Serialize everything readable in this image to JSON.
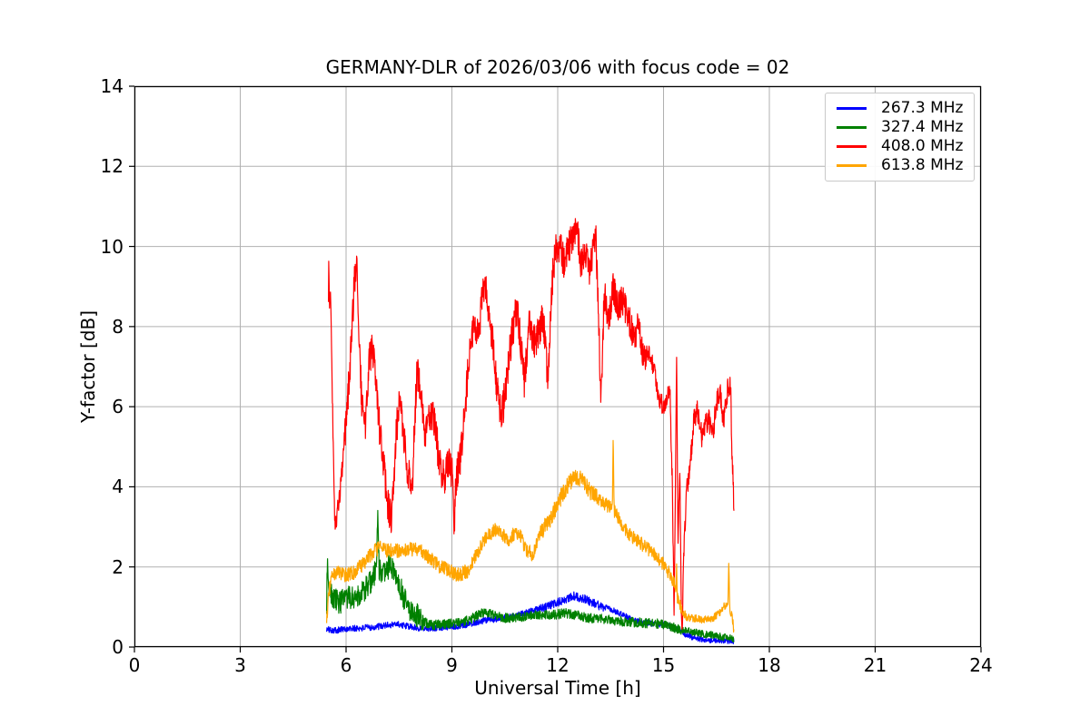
{
  "chart_data": {
    "type": "line",
    "title": "GERMANY-DLR of 2026/03/06 with focus code = 02",
    "xlabel": "Universal Time [h]",
    "ylabel": "Y-factor [dB]",
    "xlim": [
      0,
      24
    ],
    "ylim": [
      0,
      14
    ],
    "xticks": [
      0,
      3,
      6,
      9,
      12,
      15,
      18,
      21,
      24
    ],
    "yticks": [
      0,
      2,
      4,
      6,
      8,
      10,
      12,
      14
    ],
    "grid": true,
    "grid_color": "#b0b0b0",
    "background": "#ffffff",
    "legend_position": "upper-right",
    "series": [
      {
        "name": "267.3 MHz",
        "color": "#0000ff",
        "seed": 101,
        "noise": [
          [
            5.45,
            11.5,
            0.08
          ],
          [
            11.5,
            13.3,
            0.11
          ],
          [
            13.3,
            17.01,
            0.07
          ]
        ],
        "anchors": [
          [
            5.45,
            0.44
          ],
          [
            5.7,
            0.42
          ],
          [
            6.0,
            0.45
          ],
          [
            6.4,
            0.47
          ],
          [
            6.8,
            0.5
          ],
          [
            7.2,
            0.55
          ],
          [
            7.45,
            0.58
          ],
          [
            7.7,
            0.52
          ],
          [
            8.0,
            0.48
          ],
          [
            8.4,
            0.47
          ],
          [
            8.8,
            0.5
          ],
          [
            9.1,
            0.52
          ],
          [
            9.4,
            0.56
          ],
          [
            9.7,
            0.62
          ],
          [
            10.0,
            0.68
          ],
          [
            10.4,
            0.71
          ],
          [
            10.8,
            0.78
          ],
          [
            11.2,
            0.88
          ],
          [
            11.6,
            0.98
          ],
          [
            11.9,
            1.08
          ],
          [
            12.2,
            1.18
          ],
          [
            12.45,
            1.27
          ],
          [
            12.7,
            1.22
          ],
          [
            12.95,
            1.12
          ],
          [
            13.2,
            1.02
          ],
          [
            13.5,
            0.95
          ],
          [
            13.8,
            0.82
          ],
          [
            14.1,
            0.7
          ],
          [
            14.4,
            0.62
          ],
          [
            14.8,
            0.57
          ],
          [
            15.1,
            0.55
          ],
          [
            15.4,
            0.45
          ],
          [
            15.65,
            0.3
          ],
          [
            15.9,
            0.22
          ],
          [
            16.2,
            0.18
          ],
          [
            16.6,
            0.16
          ],
          [
            17.0,
            0.15
          ]
        ]
      },
      {
        "name": "327.4 MHz",
        "color": "#008000",
        "seed": 202,
        "noise": [
          [
            5.45,
            8.2,
            0.3
          ],
          [
            8.2,
            15.5,
            0.12
          ],
          [
            15.5,
            17.01,
            0.09
          ]
        ],
        "anchors": [
          [
            5.45,
            1.05
          ],
          [
            5.47,
            2.3
          ],
          [
            5.5,
            1.6
          ],
          [
            5.6,
            1.25
          ],
          [
            5.8,
            1.1
          ],
          [
            6.0,
            1.2
          ],
          [
            6.2,
            1.25
          ],
          [
            6.45,
            1.35
          ],
          [
            6.65,
            1.55
          ],
          [
            6.8,
            1.8
          ],
          [
            6.86,
            2.0
          ],
          [
            6.9,
            3.4
          ],
          [
            6.94,
            1.9
          ],
          [
            7.1,
            1.8
          ],
          [
            7.25,
            2.1
          ],
          [
            7.35,
            1.9
          ],
          [
            7.5,
            1.6
          ],
          [
            7.65,
            1.2
          ],
          [
            7.8,
            0.95
          ],
          [
            8.0,
            0.8
          ],
          [
            8.2,
            0.62
          ],
          [
            8.5,
            0.55
          ],
          [
            8.8,
            0.58
          ],
          [
            9.1,
            0.6
          ],
          [
            9.4,
            0.65
          ],
          [
            9.7,
            0.78
          ],
          [
            9.95,
            0.88
          ],
          [
            10.2,
            0.82
          ],
          [
            10.5,
            0.72
          ],
          [
            10.8,
            0.74
          ],
          [
            11.1,
            0.76
          ],
          [
            11.5,
            0.8
          ],
          [
            11.9,
            0.8
          ],
          [
            12.2,
            0.85
          ],
          [
            12.5,
            0.8
          ],
          [
            12.9,
            0.72
          ],
          [
            13.3,
            0.7
          ],
          [
            13.7,
            0.65
          ],
          [
            14.1,
            0.62
          ],
          [
            14.5,
            0.6
          ],
          [
            14.9,
            0.58
          ],
          [
            15.2,
            0.52
          ],
          [
            15.5,
            0.42
          ],
          [
            15.8,
            0.38
          ],
          [
            16.1,
            0.33
          ],
          [
            16.4,
            0.3
          ],
          [
            16.7,
            0.25
          ],
          [
            17.0,
            0.2
          ]
        ]
      },
      {
        "name": "408.0 MHz",
        "color": "#ff0000",
        "seed": 303,
        "noise": [
          [
            5.5,
            5.9,
            0.25
          ],
          [
            5.9,
            11.5,
            0.45
          ],
          [
            11.5,
            14.5,
            0.42
          ],
          [
            14.5,
            15.6,
            0.25
          ],
          [
            15.6,
            17.01,
            0.3
          ]
        ],
        "anchors": [
          [
            5.5,
            8.4
          ],
          [
            5.51,
            9.75
          ],
          [
            5.53,
            8.5
          ],
          [
            5.56,
            9.0
          ],
          [
            5.6,
            6.8
          ],
          [
            5.68,
            3.0
          ],
          [
            5.8,
            3.6
          ],
          [
            5.95,
            5.0
          ],
          [
            6.05,
            6.2
          ],
          [
            6.15,
            7.6
          ],
          [
            6.25,
            9.3
          ],
          [
            6.3,
            9.7
          ],
          [
            6.37,
            7.7
          ],
          [
            6.45,
            6.0
          ],
          [
            6.55,
            5.5
          ],
          [
            6.65,
            7.2
          ],
          [
            6.75,
            7.5
          ],
          [
            6.9,
            5.9
          ],
          [
            7.05,
            4.6
          ],
          [
            7.2,
            3.5
          ],
          [
            7.28,
            3.2
          ],
          [
            7.4,
            5.0
          ],
          [
            7.5,
            6.2
          ],
          [
            7.62,
            5.4
          ],
          [
            7.75,
            4.3
          ],
          [
            7.88,
            4.1
          ],
          [
            8.0,
            6.8
          ],
          [
            8.12,
            6.6
          ],
          [
            8.25,
            5.2
          ],
          [
            8.38,
            5.8
          ],
          [
            8.52,
            5.6
          ],
          [
            8.65,
            4.5
          ],
          [
            8.8,
            4.2
          ],
          [
            8.92,
            4.6
          ],
          [
            9.0,
            4.4
          ],
          [
            9.06,
            2.9
          ],
          [
            9.12,
            4.2
          ],
          [
            9.25,
            4.8
          ],
          [
            9.4,
            6.2
          ],
          [
            9.52,
            7.7
          ],
          [
            9.62,
            8.0
          ],
          [
            9.75,
            7.7
          ],
          [
            9.9,
            9.1
          ],
          [
            10.0,
            8.7
          ],
          [
            10.12,
            7.9
          ],
          [
            10.3,
            6.3
          ],
          [
            10.42,
            5.8
          ],
          [
            10.55,
            6.6
          ],
          [
            10.7,
            7.8
          ],
          [
            10.85,
            8.5
          ],
          [
            10.95,
            7.6
          ],
          [
            11.05,
            6.6
          ],
          [
            11.2,
            8.2
          ],
          [
            11.3,
            7.6
          ],
          [
            11.45,
            7.8
          ],
          [
            11.58,
            8.3
          ],
          [
            11.72,
            6.7
          ],
          [
            11.85,
            9.2
          ],
          [
            11.95,
            10.0
          ],
          [
            12.1,
            9.9
          ],
          [
            12.2,
            9.5
          ],
          [
            12.3,
            10.0
          ],
          [
            12.45,
            10.2
          ],
          [
            12.55,
            10.5
          ],
          [
            12.65,
            9.5
          ],
          [
            12.8,
            9.9
          ],
          [
            12.9,
            9.4
          ],
          [
            13.0,
            9.8
          ],
          [
            13.08,
            10.3
          ],
          [
            13.17,
            8.0
          ],
          [
            13.22,
            6.0
          ],
          [
            13.32,
            8.8
          ],
          [
            13.45,
            8.2
          ],
          [
            13.58,
            9.0
          ],
          [
            13.7,
            8.4
          ],
          [
            13.85,
            8.7
          ],
          [
            14.0,
            8.2
          ],
          [
            14.15,
            7.7
          ],
          [
            14.3,
            8.0
          ],
          [
            14.45,
            7.2
          ],
          [
            14.6,
            7.4
          ],
          [
            14.75,
            6.8
          ],
          [
            14.9,
            6.1
          ],
          [
            15.05,
            6.0
          ],
          [
            15.18,
            6.5
          ],
          [
            15.25,
            4.0
          ],
          [
            15.3,
            0.8
          ],
          [
            15.33,
            3.6
          ],
          [
            15.37,
            7.4
          ],
          [
            15.41,
            2.3
          ],
          [
            15.46,
            4.4
          ],
          [
            15.52,
            0.12
          ],
          [
            15.58,
            2.5
          ],
          [
            15.65,
            4.0
          ],
          [
            15.75,
            4.4
          ],
          [
            15.85,
            5.6
          ],
          [
            15.95,
            5.9
          ],
          [
            16.1,
            5.2
          ],
          [
            16.25,
            5.7
          ],
          [
            16.4,
            5.4
          ],
          [
            16.5,
            6.0
          ],
          [
            16.6,
            6.5
          ],
          [
            16.7,
            5.6
          ],
          [
            16.82,
            6.5
          ],
          [
            16.9,
            6.6
          ],
          [
            16.94,
            4.8
          ],
          [
            17.0,
            3.4
          ]
        ]
      },
      {
        "name": "613.8 MHz",
        "color": "#ffa500",
        "seed": 404,
        "noise": [
          [
            5.45,
            11.5,
            0.18
          ],
          [
            11.5,
            13.2,
            0.22
          ],
          [
            13.2,
            15.5,
            0.17
          ],
          [
            15.5,
            17.01,
            0.1
          ]
        ],
        "anchors": [
          [
            5.45,
            0.65
          ],
          [
            5.5,
            1.3
          ],
          [
            5.6,
            1.8
          ],
          [
            5.8,
            1.85
          ],
          [
            6.0,
            1.8
          ],
          [
            6.2,
            1.85
          ],
          [
            6.45,
            2.05
          ],
          [
            6.7,
            2.3
          ],
          [
            6.95,
            2.5
          ],
          [
            7.2,
            2.4
          ],
          [
            7.5,
            2.4
          ],
          [
            7.8,
            2.45
          ],
          [
            8.1,
            2.4
          ],
          [
            8.35,
            2.25
          ],
          [
            8.6,
            2.05
          ],
          [
            8.9,
            1.9
          ],
          [
            9.2,
            1.8
          ],
          [
            9.45,
            1.9
          ],
          [
            9.7,
            2.3
          ],
          [
            9.95,
            2.7
          ],
          [
            10.2,
            2.9
          ],
          [
            10.35,
            2.95
          ],
          [
            10.55,
            2.65
          ],
          [
            10.75,
            2.8
          ],
          [
            10.9,
            2.85
          ],
          [
            11.1,
            2.45
          ],
          [
            11.3,
            2.3
          ],
          [
            11.55,
            2.9
          ],
          [
            11.8,
            3.2
          ],
          [
            12.0,
            3.6
          ],
          [
            12.25,
            4.0
          ],
          [
            12.5,
            4.3
          ],
          [
            12.7,
            4.15
          ],
          [
            12.95,
            3.85
          ],
          [
            13.2,
            3.65
          ],
          [
            13.45,
            3.5
          ],
          [
            13.55,
            3.45
          ],
          [
            13.57,
            5.25
          ],
          [
            13.6,
            3.4
          ],
          [
            13.8,
            3.1
          ],
          [
            14.0,
            2.85
          ],
          [
            14.25,
            2.65
          ],
          [
            14.5,
            2.5
          ],
          [
            14.75,
            2.3
          ],
          [
            15.0,
            2.05
          ],
          [
            15.2,
            1.8
          ],
          [
            15.35,
            1.45
          ],
          [
            15.37,
            2.2
          ],
          [
            15.39,
            1.2
          ],
          [
            15.5,
            0.95
          ],
          [
            15.65,
            0.75
          ],
          [
            15.9,
            0.72
          ],
          [
            16.2,
            0.68
          ],
          [
            16.45,
            0.75
          ],
          [
            16.6,
            0.85
          ],
          [
            16.75,
            1.05
          ],
          [
            16.83,
            1.1
          ],
          [
            16.85,
            2.05
          ],
          [
            16.88,
            0.9
          ],
          [
            16.95,
            0.75
          ],
          [
            17.0,
            0.35
          ]
        ]
      }
    ]
  }
}
